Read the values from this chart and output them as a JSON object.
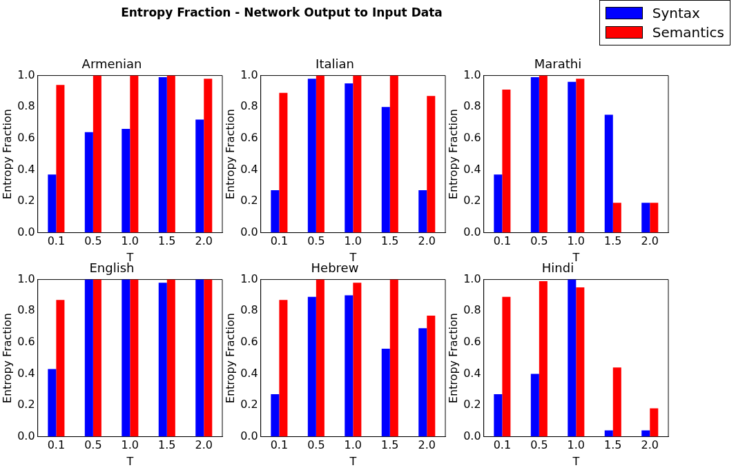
{
  "chart_data": [
    {
      "type": "other",
      "title": "Entropy Fraction - Network Output to Input Data"
    },
    {
      "type": "bar",
      "title": "Armenian",
      "xlabel": "T",
      "ylabel": "Entropy Fraction",
      "legend": "top right",
      "categories": [
        "0.1",
        "0.5",
        "1.0",
        "1.5",
        "2.0"
      ],
      "ylim": [
        0,
        1
      ],
      "yticks": [
        {
          "value": 0,
          "label": "0.0"
        },
        {
          "value": 0.2,
          "label": "0.2"
        },
        {
          "value": 0.4,
          "label": "0.4"
        },
        {
          "value": 0.6,
          "label": "0.6"
        },
        {
          "value": 0.8,
          "label": "0.8"
        },
        {
          "value": 1,
          "label": "1.0"
        }
      ],
      "series": [
        {
          "name": "Syntax",
          "color": "#0000ff",
          "values": [
            0.37,
            0.64,
            0.66,
            0.99,
            0.72
          ]
        },
        {
          "name": "Semantics",
          "color": "#ff0000",
          "values": [
            0.94,
            1.0,
            1.0,
            1.0,
            0.98
          ]
        }
      ]
    },
    {
      "type": "bar",
      "title": "Italian",
      "xlabel": "T",
      "ylabel": "Entropy Fraction",
      "categories": [
        "0.1",
        "0.5",
        "1.0",
        "1.5",
        "2.0"
      ],
      "ylim": [
        0,
        1
      ],
      "yticks": [
        {
          "value": 0,
          "label": "0.0"
        },
        {
          "value": 0.2,
          "label": "0.2"
        },
        {
          "value": 0.4,
          "label": "0.4"
        },
        {
          "value": 0.6,
          "label": "0.6"
        },
        {
          "value": 0.8,
          "label": "0.8"
        },
        {
          "value": 1,
          "label": "1.0"
        }
      ],
      "series": [
        {
          "color": "#0000ff",
          "values": [
            0.27,
            0.98,
            0.95,
            0.8,
            0.27
          ]
        },
        {
          "color": "#ff0000",
          "values": [
            0.89,
            1.0,
            1.0,
            1.0,
            0.87
          ]
        }
      ]
    },
    {
      "type": "bar",
      "title": "Marathi",
      "xlabel": "T",
      "ylabel": "Entropy Fraction",
      "categories": [
        "0.1",
        "0.5",
        "1.0",
        "1.5",
        "2.0"
      ],
      "ylim": [
        0,
        1
      ],
      "yticks": [
        {
          "value": 0,
          "label": "0.0"
        },
        {
          "value": 0.2,
          "label": "0.2"
        },
        {
          "value": 0.4,
          "label": "0.4"
        },
        {
          "value": 0.6,
          "label": "0.6"
        },
        {
          "value": 0.8,
          "label": "0.8"
        },
        {
          "value": 1,
          "label": "1.0"
        }
      ],
      "series": [
        {
          "color": "#0000ff",
          "values": [
            0.37,
            0.99,
            0.96,
            0.75,
            0.19
          ]
        },
        {
          "color": "#ff0000",
          "values": [
            0.91,
            1.0,
            0.98,
            0.19,
            0.19
          ]
        }
      ]
    },
    {
      "type": "bar",
      "title": "English",
      "xlabel": "T",
      "ylabel": "Entropy Fraction",
      "categories": [
        "0.1",
        "0.5",
        "1.0",
        "1.5",
        "2.0"
      ],
      "ylim": [
        0,
        1
      ],
      "yticks": [
        {
          "value": 0,
          "label": "0.0"
        },
        {
          "value": 0.2,
          "label": "0.2"
        },
        {
          "value": 0.4,
          "label": "0.4"
        },
        {
          "value": 0.6,
          "label": "0.6"
        },
        {
          "value": 0.8,
          "label": "0.8"
        },
        {
          "value": 1,
          "label": "1.0"
        }
      ],
      "series": [
        {
          "color": "#0000ff",
          "values": [
            0.43,
            1.0,
            1.0,
            0.98,
            1.0
          ]
        },
        {
          "color": "#ff0000",
          "values": [
            0.87,
            1.0,
            1.0,
            1.0,
            1.0
          ]
        }
      ]
    },
    {
      "type": "bar",
      "title": "Hebrew",
      "xlabel": "T",
      "ylabel": "Entropy Fraction",
      "categories": [
        "0.1",
        "0.5",
        "1.0",
        "1.5",
        "2.0"
      ],
      "ylim": [
        0,
        1
      ],
      "yticks": [
        {
          "value": 0,
          "label": "0.0"
        },
        {
          "value": 0.2,
          "label": "0.2"
        },
        {
          "value": 0.4,
          "label": "0.4"
        },
        {
          "value": 0.6,
          "label": "0.6"
        },
        {
          "value": 0.8,
          "label": "0.8"
        },
        {
          "value": 1,
          "label": "1.0"
        }
      ],
      "series": [
        {
          "color": "#0000ff",
          "values": [
            0.27,
            0.89,
            0.9,
            0.56,
            0.69
          ]
        },
        {
          "color": "#ff0000",
          "values": [
            0.87,
            1.0,
            0.98,
            1.0,
            0.77
          ]
        }
      ]
    },
    {
      "type": "bar",
      "title": "Hindi",
      "xlabel": "T",
      "ylabel": "Entropy Fraction",
      "categories": [
        "0.1",
        "0.5",
        "1.0",
        "1.5",
        "2.0"
      ],
      "ylim": [
        0,
        1
      ],
      "yticks": [
        {
          "value": 0,
          "label": "0.0"
        },
        {
          "value": 0.2,
          "label": "0.2"
        },
        {
          "value": 0.4,
          "label": "0.4"
        },
        {
          "value": 0.6,
          "label": "0.6"
        },
        {
          "value": 0.8,
          "label": "0.8"
        },
        {
          "value": 1,
          "label": "1.0"
        }
      ],
      "series": [
        {
          "color": "#0000ff",
          "values": [
            0.27,
            0.4,
            1.0,
            0.04,
            0.04
          ]
        },
        {
          "color": "#ff0000",
          "values": [
            0.89,
            0.99,
            0.95,
            0.44,
            0.18
          ]
        }
      ]
    }
  ]
}
